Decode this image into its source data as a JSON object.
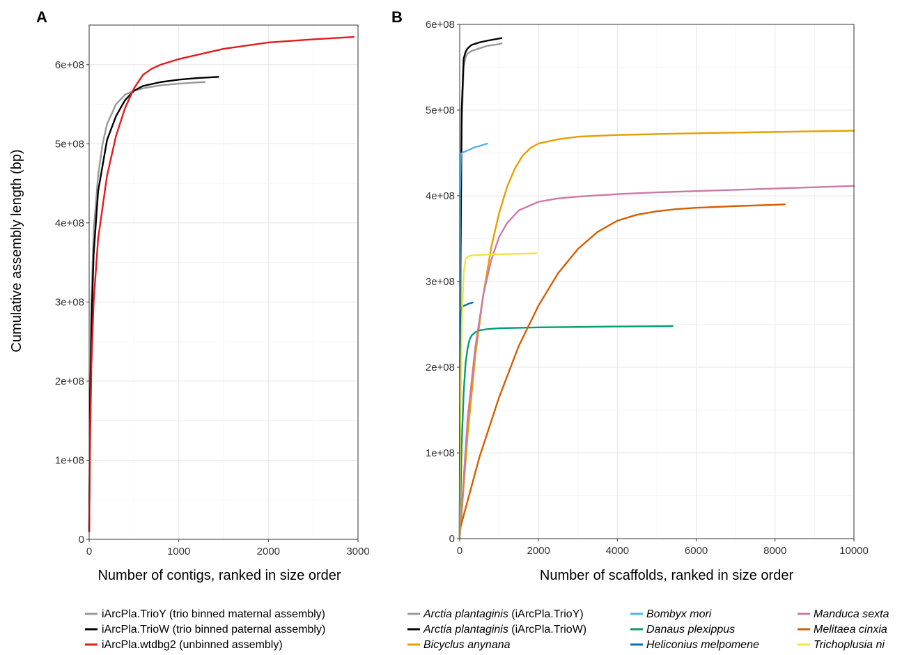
{
  "chart_data": [
    {
      "panel": "A",
      "type": "line",
      "xlabel": "Number of contigs, ranked in size order",
      "ylabel": "Cumulative assembly length (bp)",
      "xlim": [
        0,
        3000
      ],
      "ylim": [
        0,
        650000000
      ],
      "xticks": [
        0,
        1000,
        2000,
        3000
      ],
      "xtick_labels": [
        "0",
        "1000",
        "2000",
        "3000"
      ],
      "yticks": [
        0,
        100000000,
        200000000,
        300000000,
        400000000,
        500000000,
        600000000
      ],
      "ytick_labels": [
        "0",
        "1e+08",
        "2e+08",
        "3e+08",
        "4e+08",
        "5e+08",
        "6e+08"
      ],
      "grid": true,
      "legend_position": "bottom",
      "series": [
        {
          "name": "iArcPla.TrioY (trio binned maternal assembly)",
          "color": "#999999",
          "x": [
            0,
            10,
            25,
            50,
            100,
            150,
            200,
            300,
            400,
            500,
            600,
            800,
            1000,
            1200,
            1290
          ],
          "y": [
            10000000,
            180000000,
            300000000,
            390000000,
            460000000,
            500000000,
            525000000,
            550000000,
            562000000,
            567000000,
            570000000,
            574000000,
            576000000,
            577500000,
            578000000
          ]
        },
        {
          "name": "iArcPla.TrioW (trio binned paternal assembly)",
          "color": "#000000",
          "x": [
            0,
            10,
            25,
            50,
            100,
            200,
            300,
            400,
            500,
            600,
            800,
            1000,
            1200,
            1440
          ],
          "y": [
            10000000,
            160000000,
            270000000,
            360000000,
            440000000,
            505000000,
            535000000,
            555000000,
            567000000,
            573000000,
            578000000,
            581000000,
            583000000,
            584500000
          ]
        },
        {
          "name": "iArcPla.wtdbg2 (unbinned assembly)",
          "color": "#e31a1c",
          "x": [
            0,
            10,
            25,
            50,
            100,
            200,
            300,
            400,
            500,
            600,
            700,
            800,
            1000,
            1500,
            2000,
            2500,
            2950
          ],
          "y": [
            10000000,
            120000000,
            220000000,
            300000000,
            380000000,
            460000000,
            510000000,
            545000000,
            570000000,
            587000000,
            595000000,
            600000000,
            607000000,
            620000000,
            628000000,
            632000000,
            635000000
          ]
        }
      ]
    },
    {
      "panel": "B",
      "type": "line",
      "xlabel": "Number of scaffolds, ranked in size order",
      "ylabel": "",
      "xlim": [
        0,
        10000
      ],
      "ylim": [
        0,
        600000000
      ],
      "xticks": [
        0,
        2000,
        4000,
        6000,
        8000,
        10000
      ],
      "xtick_labels": [
        "0",
        "2000",
        "4000",
        "6000",
        "8000",
        "10000"
      ],
      "yticks": [
        0,
        100000000,
        200000000,
        300000000,
        400000000,
        500000000,
        600000000
      ],
      "ytick_labels": [
        "0",
        "1e+08",
        "2e+08",
        "3e+08",
        "4e+08",
        "5e+08",
        "6e+08"
      ],
      "grid": true,
      "legend_position": "bottom",
      "series": [
        {
          "name": "Arctia plantaginis",
          "suffix": " (iArcPla.TrioY)",
          "color": "#999999",
          "x": [
            0,
            20,
            50,
            100,
            150,
            200,
            300,
            500,
            700,
            1000,
            1060
          ],
          "y": [
            0,
            300000000,
            480000000,
            550000000,
            562000000,
            566000000,
            569000000,
            572000000,
            575000000,
            577000000,
            578000000
          ]
        },
        {
          "name": "Arctia plantaginis",
          "suffix": " (iArcPla.TrioW)",
          "color": "#000000",
          "x": [
            0,
            20,
            50,
            100,
            150,
            200,
            300,
            500,
            700,
            1000,
            1060
          ],
          "y": [
            0,
            320000000,
            500000000,
            560000000,
            568000000,
            572000000,
            576000000,
            579000000,
            581000000,
            583500000,
            584000000
          ]
        },
        {
          "name": "Bicyclus anynana",
          "color": "#e69f00",
          "x": [
            0,
            200,
            400,
            600,
            800,
            1000,
            1200,
            1400,
            1600,
            1800,
            2000,
            2500,
            3000,
            4000,
            6000,
            8000,
            10000
          ],
          "y": [
            0,
            120000000,
            215000000,
            285000000,
            340000000,
            380000000,
            410000000,
            432000000,
            447000000,
            456000000,
            461000000,
            466000000,
            469000000,
            471000000,
            473000000,
            474500000,
            476000000
          ]
        },
        {
          "name": "Bombyx mori",
          "color": "#56b4e9",
          "x": [
            0,
            10,
            30,
            100,
            200,
            300,
            400,
            500,
            600,
            700
          ],
          "y": [
            0,
            400000000,
            449000000,
            451000000,
            453000000,
            455000000,
            457000000,
            458000000,
            459500000,
            461000000
          ]
        },
        {
          "name": "Danaus plexippus",
          "color": "#009e73",
          "x": [
            0,
            50,
            100,
            150,
            200,
            250,
            300,
            400,
            500,
            700,
            1000,
            2000,
            3000,
            4000,
            5400
          ],
          "y": [
            0,
            110000000,
            170000000,
            205000000,
            222000000,
            232000000,
            237000000,
            241000000,
            243000000,
            244500000,
            245500000,
            246500000,
            247000000,
            247500000,
            248000000
          ]
        },
        {
          "name": "Heliconius melpomene",
          "color": "#0072b2",
          "x": [
            0,
            10,
            30,
            60,
            100,
            150,
            200,
            250,
            300,
            330
          ],
          "y": [
            0,
            150000000,
            265000000,
            270000000,
            271500000,
            272500000,
            273500000,
            274500000,
            275000000,
            275500000
          ]
        },
        {
          "name": "Manduca sexta",
          "color": "#cc79a7",
          "x": [
            0,
            200,
            400,
            600,
            800,
            1000,
            1200,
            1500,
            2000,
            2500,
            3000,
            4000,
            5000,
            6000,
            7000,
            8000,
            9000,
            10000
          ],
          "y": [
            0,
            140000000,
            225000000,
            285000000,
            325000000,
            352000000,
            368000000,
            383000000,
            393000000,
            397000000,
            399000000,
            402000000,
            404000000,
            405500000,
            407000000,
            408500000,
            410000000,
            411500000
          ]
        },
        {
          "name": "Melitaea cinxia",
          "color": "#d55e00",
          "x": [
            0,
            500,
            1000,
            1500,
            2000,
            2500,
            3000,
            3500,
            4000,
            4500,
            5000,
            5500,
            6000,
            7000,
            8000,
            8250
          ],
          "y": [
            10000000,
            95000000,
            165000000,
            225000000,
            272000000,
            310000000,
            338000000,
            358000000,
            371000000,
            378000000,
            382000000,
            384500000,
            386000000,
            388000000,
            389500000,
            390000000
          ]
        },
        {
          "name": "Trichoplusia ni",
          "color": "#f0e442",
          "x": [
            0,
            20,
            60,
            100,
            150,
            200,
            300,
            500,
            800,
            1200,
            1600,
            1950
          ],
          "y": [
            0,
            150000000,
            260000000,
            310000000,
            326000000,
            329000000,
            330500000,
            331000000,
            331500000,
            332000000,
            332500000,
            333000000
          ]
        }
      ]
    }
  ]
}
